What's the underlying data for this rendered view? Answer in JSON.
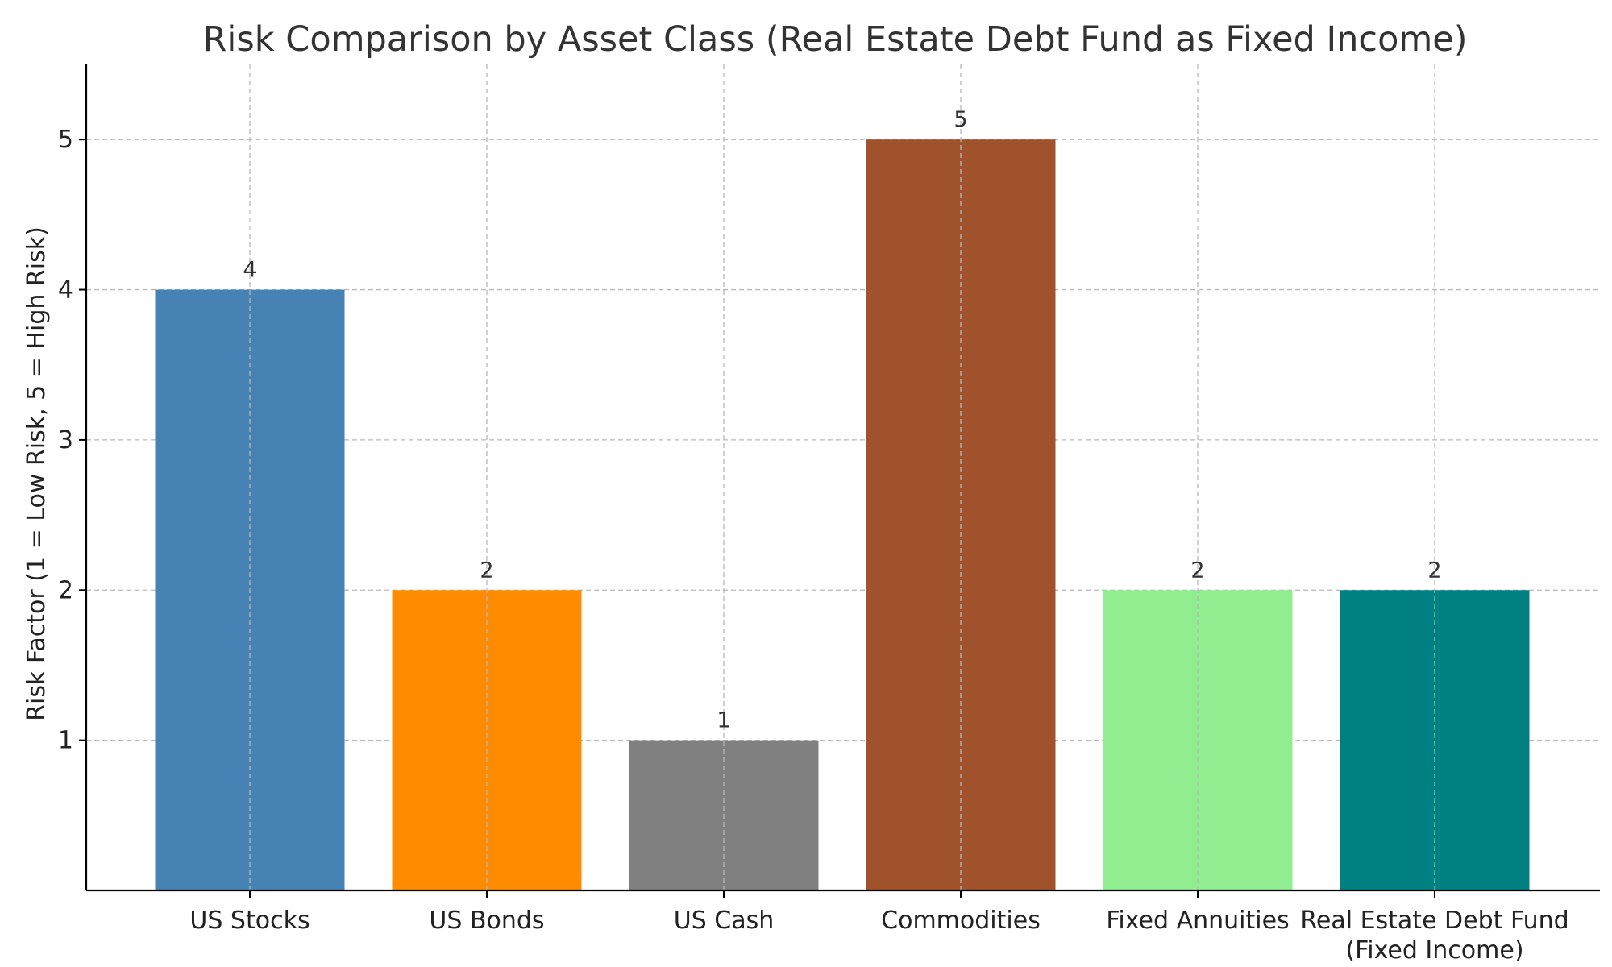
{
  "chart_data": {
    "type": "bar",
    "title": "Risk Comparison by Asset Class (Real Estate Debt Fund as Fixed Income)",
    "xlabel": "",
    "ylabel": "Risk Factor (1 = Low Risk, 5 = High Risk)",
    "categories": [
      [
        "US Stocks"
      ],
      [
        "US Bonds"
      ],
      [
        "US Cash"
      ],
      [
        "Commodities"
      ],
      [
        "Fixed Annuities"
      ],
      [
        "Real Estate Debt Fund",
        "(Fixed Income)"
      ]
    ],
    "values": [
      4,
      2,
      1,
      5,
      2,
      2
    ],
    "data_labels": [
      "4",
      "2",
      "1",
      "5",
      "2",
      "2"
    ],
    "colors": [
      "#4682b4",
      "#ff8c00",
      "#808080",
      "#a0522d",
      "#90ee90",
      "#008080"
    ],
    "ylim": [
      0,
      5.5
    ],
    "yticks": [
      1,
      2,
      3,
      4,
      5
    ],
    "ytick_labels": [
      "1",
      "2",
      "3",
      "4",
      "5"
    ],
    "grid": true,
    "legend": "none"
  }
}
